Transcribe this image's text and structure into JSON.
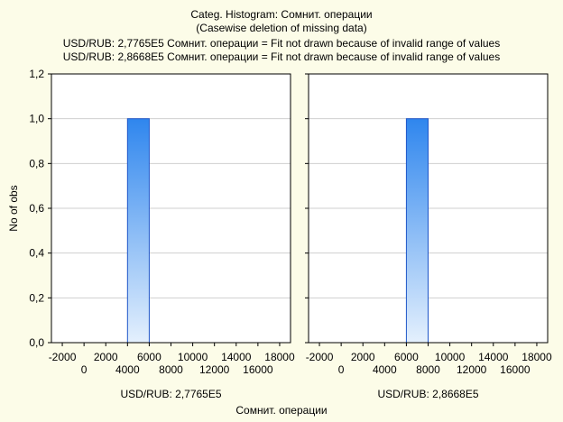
{
  "header": {
    "title": "Categ. Histogram: Сомнит. операции",
    "subtitle": "(Casewise deletion of missing data)",
    "notes": [
      "USD/RUB: 2,7765E5 Сомнит. операции = Fit not drawn because of invalid range of values",
      "USD/RUB: 2,8668E5 Сомнит. операции = Fit not drawn because of invalid range of values"
    ]
  },
  "chart_data": {
    "type": "bar",
    "title": "Categ. Histogram: Сомнит. операции",
    "xlabel": "Сомнит. операции",
    "ylabel": "No of obs",
    "ylim": [
      0,
      1.2
    ],
    "yticks": [
      "0,0",
      "0,2",
      "0,4",
      "0,6",
      "0,8",
      "1,0",
      "1,2"
    ],
    "xlim": [
      -3000,
      19000
    ],
    "xticks_upper": [
      "-2000",
      "2000",
      "6000",
      "10000",
      "14000",
      "18000"
    ],
    "xticks_lower": [
      "0",
      "4000",
      "8000",
      "12000",
      "16000"
    ],
    "grid": true,
    "bar_color": "#3d8eef",
    "panels": [
      {
        "label": "USD/RUB: 2,7765E5",
        "bars": [
          {
            "x0": 4000,
            "x1": 6000,
            "value": 1
          }
        ]
      },
      {
        "label": "USD/RUB: 2,8668E5",
        "bars": [
          {
            "x0": 6000,
            "x1": 8000,
            "value": 1
          }
        ]
      }
    ]
  }
}
